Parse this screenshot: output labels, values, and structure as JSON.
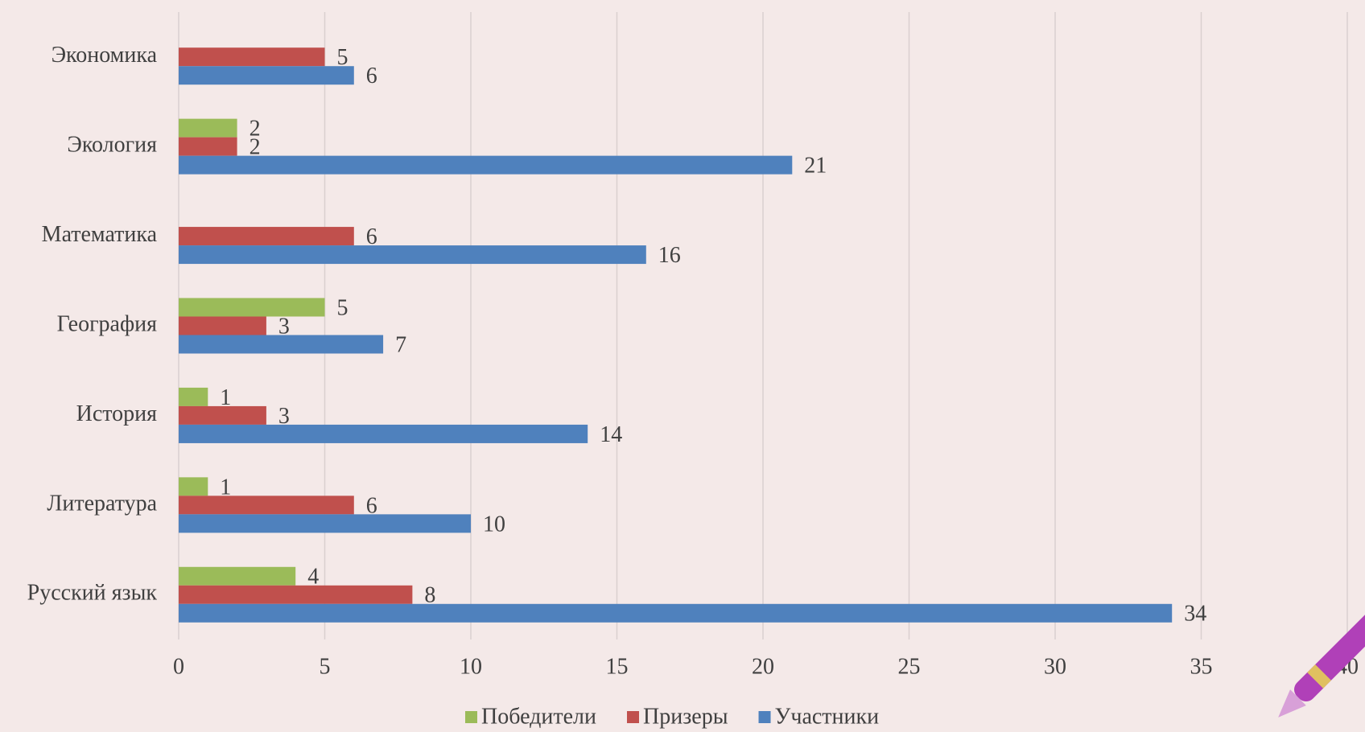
{
  "chart_data": {
    "type": "bar",
    "orientation": "horizontal",
    "categories": [
      "Русский язык",
      "Литература",
      "История",
      "География",
      "Математика",
      "Экология",
      "Экономика"
    ],
    "series": [
      {
        "name": "Победители",
        "color": "#9bbb59",
        "values": [
          4,
          1,
          1,
          5,
          null,
          2,
          null
        ]
      },
      {
        "name": "Призеры",
        "color": "#c0504d",
        "values": [
          8,
          6,
          3,
          3,
          6,
          2,
          5
        ]
      },
      {
        "name": "Участники",
        "color": "#4f81bd",
        "values": [
          34,
          10,
          14,
          7,
          16,
          21,
          6
        ]
      }
    ],
    "xlim": [
      0,
      40
    ],
    "xticks": [
      0,
      5,
      10,
      15,
      20,
      25,
      30,
      35,
      40
    ],
    "grid": true,
    "legend": "bottom"
  }
}
